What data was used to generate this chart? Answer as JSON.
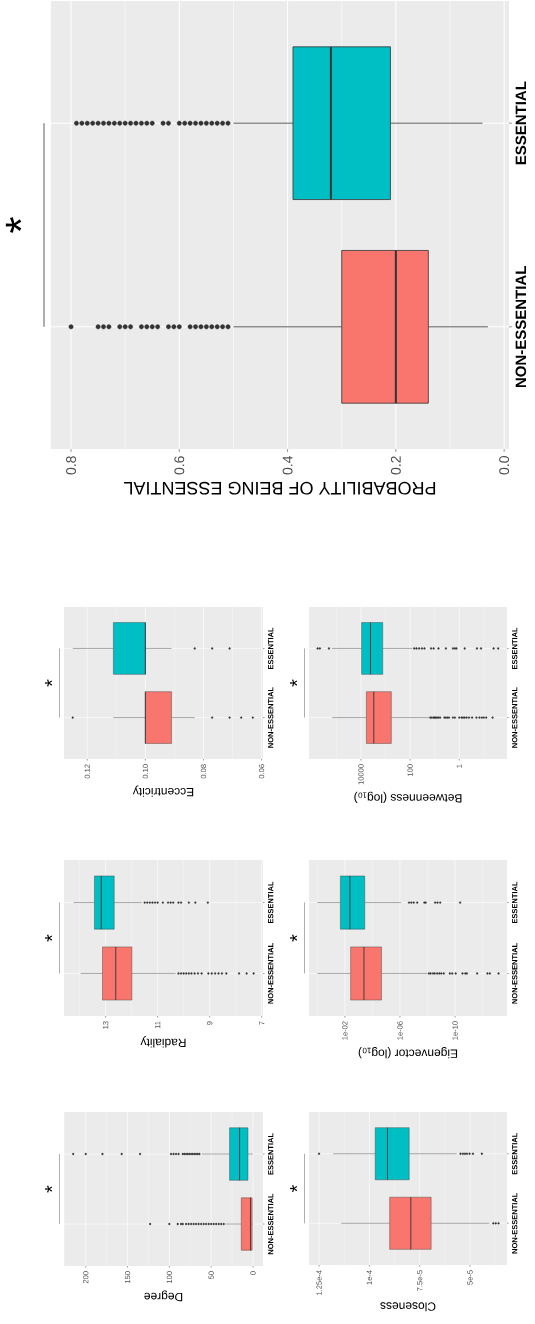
{
  "chart_data": [
    {
      "type": "box",
      "orientation": "horizontal",
      "xlabel": "PROBABILITY OF BEING ESSENTIAL",
      "categories": [
        "ESSENTIAL",
        "NON-ESSENTIAL"
      ],
      "colors": [
        "#00BFC4",
        "#F8766D"
      ],
      "grid": true,
      "annotations": [
        "*"
      ],
      "xlim": [
        0.837,
        -0.009
      ],
      "xticks": [
        0.8,
        0.6,
        0.4,
        0.2,
        {
          "value": 0,
          "label": "0.0"
        }
      ],
      "boxes": [
        {
          "low": 0.04,
          "q1": 0.21,
          "median": 0.32,
          "q3": 0.39,
          "high": 0.5,
          "outliers": [
            0.51,
            0.52,
            0.53,
            0.54,
            0.55,
            0.56,
            0.57,
            0.58,
            0.59,
            0.6,
            0.62,
            0.63,
            0.65,
            0.66,
            0.67,
            0.68,
            0.69,
            0.7,
            0.71,
            0.72,
            0.73,
            0.74,
            0.75,
            0.76,
            0.77,
            0.78,
            0.79
          ]
        },
        {
          "low": 0.03,
          "q1": 0.14,
          "median": 0.2,
          "q3": 0.3,
          "high": 0.5,
          "outliers": [
            0.51,
            0.52,
            0.53,
            0.54,
            0.55,
            0.56,
            0.57,
            0.58,
            0.6,
            0.61,
            0.62,
            0.64,
            0.65,
            0.66,
            0.67,
            0.69,
            0.7,
            0.71,
            0.73,
            0.74,
            0.75,
            0.8
          ]
        }
      ]
    },
    {
      "type": "box",
      "orientation": "horizontal",
      "xlabel": "Eccentricity",
      "categories": [
        "ESSENTIAL",
        "NON-ESSENTIAL"
      ],
      "colors": [
        "#00BFC4",
        "#F8766D"
      ],
      "grid": true,
      "annotations": [
        "*"
      ],
      "xlim": [
        0.128,
        0.0595
      ],
      "xticks": [
        0.12,
        {
          "value": 0.1,
          "label": "0.10"
        },
        0.08,
        0.06
      ],
      "boxes": [
        {
          "low": 0.091,
          "q1": 0.1,
          "median": 0.1,
          "q3": 0.111,
          "high": 0.125,
          "outliers": [
            0.083,
            0.077,
            0.071
          ]
        },
        {
          "low": 0.083,
          "q1": 0.091,
          "median": 0.1,
          "q3": 0.1,
          "high": 0.111,
          "outliers": [
            0.125,
            0.077,
            0.071,
            0.067,
            0.063
          ]
        }
      ]
    },
    {
      "type": "box",
      "orientation": "horizontal",
      "xlabel": "Betweenness (log$_{10}$)",
      "categories": [
        "ESSENTIAL",
        "NON-ESSENTIAL"
      ],
      "colors": [
        "#00BFC4",
        "#F8766D"
      ],
      "grid": true,
      "annotations": [
        "*"
      ],
      "log": "x",
      "xlim": [
        1300000,
        0.0114
      ],
      "xticks": [
        10000,
        100,
        1
      ],
      "boxes": [
        {
          "low": 83,
          "q1": 1300,
          "median": 4100,
          "q3": 9400,
          "high": 150000,
          "outliers": [
            580000,
            470000,
            200000,
            68,
            55,
            43,
            33,
            26,
            14,
            11,
            7,
            3.5,
            1.8,
            1.5,
            1.3,
            0.6,
            0.19,
            0.13,
            0.04,
            0.026
          ]
        },
        {
          "low": 17,
          "q1": 580,
          "median": 3000,
          "q3": 6000,
          "high": 147000,
          "outliers": [
            15,
            13,
            11,
            10,
            9,
            8,
            7,
            6,
            4,
            3.5,
            3,
            2.6,
            1.8,
            1.5,
            1.0,
            0.8,
            0.7,
            0.6,
            0.5,
            0.4,
            0.3,
            0.2,
            0.15,
            0.12,
            0.1,
            0.08,
            0.044
          ]
        }
      ]
    },
    {
      "type": "box",
      "orientation": "horizontal",
      "xlabel": "Radiality",
      "categories": [
        "ESSENTIAL",
        "NON-ESSENTIAL"
      ],
      "colors": [
        "#00BFC4",
        "#F8766D"
      ],
      "grid": true,
      "annotations": [
        "*"
      ],
      "xlim": [
        14.6,
        6.95
      ],
      "xticks": [
        13,
        11,
        9,
        7
      ],
      "boxes": [
        {
          "low": 11.61,
          "q1": 12.67,
          "median": 13.17,
          "q3": 13.43,
          "high": 14.23,
          "outliers": [
            11.5,
            11.4,
            11.3,
            11.2,
            11.1,
            11.0,
            10.8,
            10.6,
            10.5,
            10.4,
            10.2,
            10.1,
            9.8,
            9.55,
            9.07
          ]
        },
        {
          "low": 10.31,
          "q1": 11.99,
          "median": 12.61,
          "q3": 13.12,
          "high": 13.96,
          "outliers": [
            10.2,
            10.1,
            10.0,
            9.9,
            9.8,
            9.7,
            9.58,
            9.45,
            9.31,
            9.05,
            8.92,
            8.79,
            8.66,
            8.53,
            8.36,
            7.87,
            7.58,
            7.31
          ]
        }
      ]
    },
    {
      "type": "box",
      "orientation": "horizontal",
      "xlabel": "Eigenvector (log$_{10}$)",
      "categories": [
        "ESSENTIAL",
        "NON-ESSENTIAL"
      ],
      "colors": [
        "#00BFC4",
        "#F8766D"
      ],
      "grid": true,
      "annotations": [
        "*"
      ],
      "log": "x",
      "xlim": [
        4,
        1.7e-14
      ],
      "xticks": [
        {
          "value": 0.01,
          "label": "1e-02"
        },
        {
          "value": 1e-06,
          "label": "1e-06"
        },
        {
          "value": 1e-10,
          "label": "1e-10"
        }
      ],
      "boxes": [
        {
          "low": 8.3e-07,
          "q1": 0.00036,
          "median": 0.0043,
          "q3": 0.021,
          "high": 1.0,
          "outliers": [
            2.2e-07,
            1.5e-07,
            1e-07,
            5.6e-08,
            1.7e-08,
            1.35e-08,
            2.8e-09,
            1.9e-09,
            1.2e-09,
            4.3e-11
          ]
        },
        {
          "low": 1.1e-08,
          "q1": 2.2e-05,
          "median": 0.00041,
          "q3": 0.0038,
          "high": 1.0,
          "outliers": [
            8e-09,
            6e-09,
            4e-09,
            3e-09,
            2e-09,
            1.4e-09,
            1e-09,
            6.6e-10,
            2.4e-10,
            1.6e-10,
            9e-11,
            2.9e-11,
            1.8e-11,
            1.4e-11,
            2.5e-12,
            4.5e-13,
            3e-13,
            7e-14
          ]
        }
      ]
    },
    {
      "type": "box",
      "orientation": "horizontal",
      "xlabel": "Degree",
      "categories": [
        "ESSENTIAL",
        "NON-ESSENTIAL"
      ],
      "colors": [
        "#00BFC4",
        "#F8766D"
      ],
      "grid": true,
      "annotations": [
        "*"
      ],
      "xlim": [
        226,
        -12
      ],
      "xticks": [
        200,
        150,
        100,
        50,
        0
      ],
      "boxes": [
        {
          "low": 0,
          "q1": 6,
          "median": 16,
          "q3": 28,
          "high": 61,
          "outliers": [
            64,
            66,
            68,
            70,
            72,
            74,
            76,
            78,
            80,
            82,
            84,
            89,
            92,
            95,
            98,
            135,
            157,
            180,
            200,
            215
          ]
        },
        {
          "low": 0,
          "q1": 1,
          "median": 3,
          "q3": 14,
          "high": 33,
          "outliers": [
            35,
            38,
            41,
            44,
            47,
            50,
            53,
            56,
            59,
            62,
            65,
            68,
            71,
            74,
            77,
            80,
            84,
            86,
            90,
            100,
            123
          ]
        }
      ]
    },
    {
      "type": "box",
      "orientation": "horizontal",
      "xlabel": "Closeness",
      "categories": [
        "ESSENTIAL",
        "NON-ESSENTIAL"
      ],
      "colors": [
        "#00BFC4",
        "#F8766D"
      ],
      "grid": true,
      "annotations": [
        "*"
      ],
      "xlim": [
        0.00013,
        3.16e-05
      ],
      "xticks": [
        {
          "value": 0.000125,
          "label": "1.25e-4"
        },
        {
          "value": 0.0001,
          "label": "1e-4"
        },
        {
          "value": 7.5e-05,
          "label": "7.5e-5"
        },
        {
          "value": 5e-05,
          "label": "5e-5"
        }
      ],
      "boxes": [
        {
          "low": 5.66e-05,
          "q1": 8.02e-05,
          "median": 9.1e-05,
          "q3": 9.71e-05,
          "high": 0.000118,
          "outliers": [
            0.000125,
            5.47e-05,
            5.35e-05,
            5.25e-05,
            5.15e-05,
            5.02e-05,
            4.85e-05,
            4.41e-05
          ]
        },
        {
          "low": 4.04e-05,
          "q1": 6.93e-05,
          "median": 7.94e-05,
          "q3": 8.99e-05,
          "high": 0.000114,
          "outliers": [
            3.84e-05,
            3.72e-05,
            3.58e-05
          ]
        }
      ]
    }
  ]
}
